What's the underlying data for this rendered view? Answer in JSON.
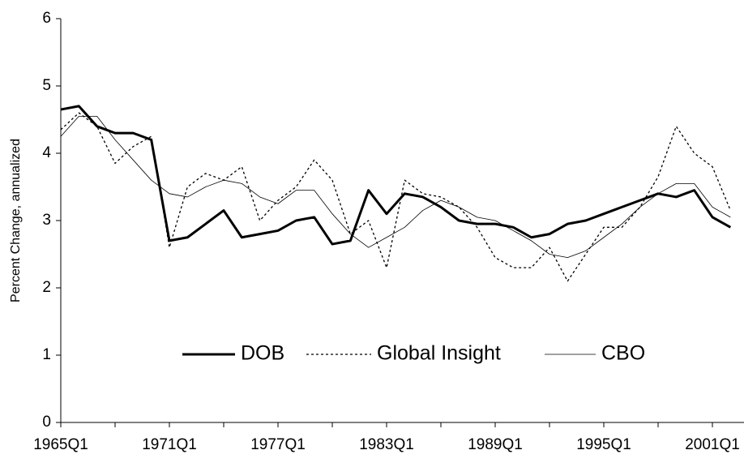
{
  "chart_data": {
    "type": "line",
    "y_label": "Percent Change, annualized",
    "categories": [
      "1965Q1",
      null,
      null,
      null,
      null,
      null,
      "1971Q1",
      null,
      null,
      null,
      null,
      null,
      "1977Q1",
      null,
      null,
      null,
      null,
      null,
      "1983Q1",
      null,
      null,
      null,
      null,
      null,
      "1989Q1",
      null,
      null,
      null,
      null,
      null,
      "1995Q1",
      null,
      null,
      null,
      null,
      null,
      "2001Q1",
      null
    ],
    "series": [
      {
        "name": "DOB",
        "color": "#000000",
        "values": [
          4.65,
          4.7,
          4.4,
          4.3,
          4.3,
          4.2,
          2.7,
          2.75,
          2.95,
          3.15,
          2.75,
          2.8,
          2.85,
          3.0,
          3.05,
          2.65,
          2.7,
          3.45,
          3.1,
          3.4,
          3.35,
          3.2,
          3.0,
          2.95,
          2.95,
          2.9,
          2.75,
          2.8,
          2.95,
          3.0,
          3.1,
          3.2,
          3.3,
          3.4,
          3.35,
          3.45,
          3.05,
          2.9
        ]
      },
      {
        "name": "Global Insight",
        "color": "#000000",
        "values": [
          4.35,
          4.6,
          4.4,
          3.85,
          4.1,
          4.25,
          2.6,
          3.5,
          3.7,
          3.6,
          3.8,
          3.0,
          3.3,
          3.5,
          3.9,
          3.6,
          2.8,
          3.0,
          2.3,
          3.6,
          3.4,
          3.35,
          3.2,
          2.9,
          2.45,
          2.3,
          2.3,
          2.6,
          2.1,
          2.5,
          2.9,
          2.9,
          3.2,
          3.65,
          4.4,
          4.0,
          3.8,
          3.15
        ]
      },
      {
        "name": "CBO",
        "color": "#000000",
        "values": [
          4.25,
          4.55,
          4.55,
          4.2,
          3.9,
          3.6,
          3.4,
          3.35,
          3.5,
          3.6,
          3.55,
          3.35,
          3.25,
          3.45,
          3.45,
          3.1,
          2.8,
          2.6,
          2.75,
          2.9,
          3.15,
          3.3,
          3.2,
          3.05,
          3.0,
          2.85,
          2.7,
          2.5,
          2.45,
          2.55,
          2.75,
          2.95,
          3.2,
          3.4,
          3.55,
          3.55,
          3.2,
          3.05
        ]
      }
    ],
    "ylim": [
      0,
      6
    ],
    "yticks": [
      0,
      1,
      2,
      3,
      4,
      5,
      6
    ],
    "grid": false
  }
}
